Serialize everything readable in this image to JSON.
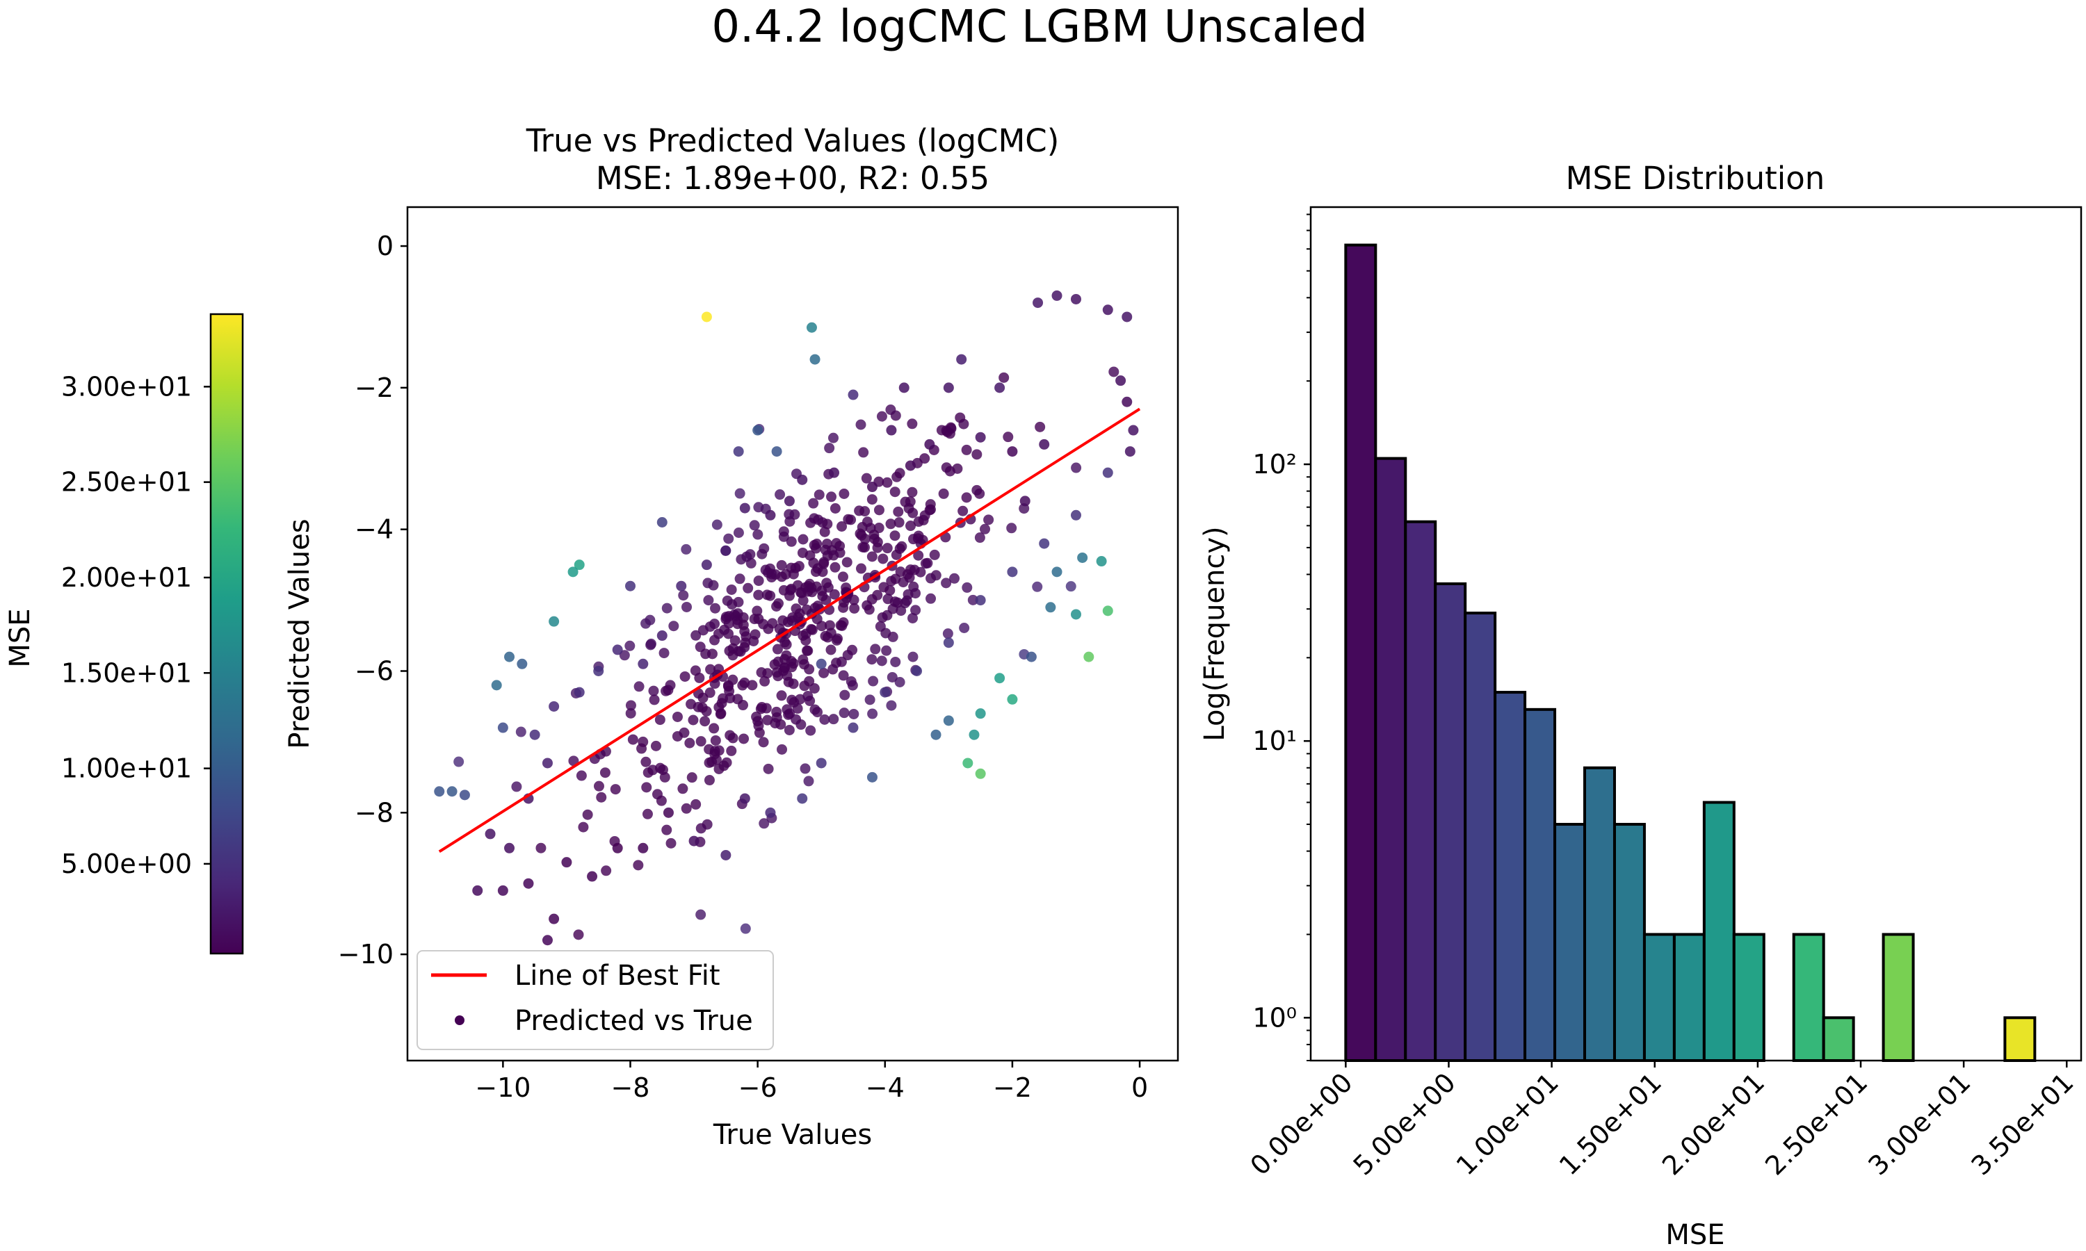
{
  "figure": {
    "suptitle": "0.4.2 logCMC LGBM Unscaled"
  },
  "chart_data": [
    {
      "type": "scatter",
      "title_line1": "True vs Predicted Values (logCMC)",
      "title_line2": "MSE: 1.89e+00, R2: 0.55",
      "xlabel": "True Values",
      "ylabel": "Predicted Values",
      "xlim": [
        -11.5,
        0.6
      ],
      "ylim": [
        -11.5,
        0.55
      ],
      "xticks": [
        -10,
        -8,
        -6,
        -4,
        -2,
        0
      ],
      "xtick_labels": [
        "−10",
        "−8",
        "−6",
        "−4",
        "−2",
        "0"
      ],
      "yticks": [
        0,
        -2,
        -4,
        -6,
        -8,
        -10
      ],
      "ytick_labels": [
        "0",
        "−2",
        "−4",
        "−6",
        "−8",
        "−10"
      ],
      "best_fit": {
        "name": "Line of Best Fit",
        "x": [
          -11.0,
          0.0
        ],
        "y": [
          -8.55,
          -2.3
        ],
        "color": "#ff0000"
      },
      "scatter_name": "Predicted vs True",
      "legend_loc": "lower left",
      "point_color_by": "MSE",
      "points": [
        {
          "x": -6.8,
          "y": -1.0,
          "mse": 33.8
        },
        {
          "x": -5.15,
          "y": -1.15,
          "mse": 15.0
        },
        {
          "x": -5.1,
          "y": -1.6,
          "mse": 12.0
        },
        {
          "x": -8.8,
          "y": -4.5,
          "mse": 19.5
        },
        {
          "x": -8.9,
          "y": -4.6,
          "mse": 18.5
        },
        {
          "x": -9.2,
          "y": -5.3,
          "mse": 16.0
        },
        {
          "x": -9.7,
          "y": -5.9,
          "mse": 10.0
        },
        {
          "x": -9.9,
          "y": -5.8,
          "mse": 11.0
        },
        {
          "x": -10.1,
          "y": -6.2,
          "mse": 12.0
        },
        {
          "x": -10.0,
          "y": -6.8,
          "mse": 8.0
        },
        {
          "x": -11.0,
          "y": -7.7,
          "mse": 9.0
        },
        {
          "x": -10.8,
          "y": -7.7,
          "mse": 9.5
        },
        {
          "x": -10.6,
          "y": -7.75,
          "mse": 8.0
        },
        {
          "x": -0.5,
          "y": -5.15,
          "mse": 24.0
        },
        {
          "x": -0.8,
          "y": -5.8,
          "mse": 25.5
        },
        {
          "x": -0.6,
          "y": -4.45,
          "mse": 17.5
        },
        {
          "x": -0.9,
          "y": -4.4,
          "mse": 13.0
        },
        {
          "x": -1.0,
          "y": -5.2,
          "mse": 17.0
        },
        {
          "x": -1.3,
          "y": -4.6,
          "mse": 12.0
        },
        {
          "x": -1.4,
          "y": -5.1,
          "mse": 12.5
        },
        {
          "x": -2.0,
          "y": -6.4,
          "mse": 20.5
        },
        {
          "x": -2.2,
          "y": -6.1,
          "mse": 19.0
        },
        {
          "x": -2.5,
          "y": -6.6,
          "mse": 18.0
        },
        {
          "x": -2.6,
          "y": -6.9,
          "mse": 17.5
        },
        {
          "x": -2.7,
          "y": -7.3,
          "mse": 23.0
        },
        {
          "x": -2.5,
          "y": -7.45,
          "mse": 25.0
        },
        {
          "x": -4.2,
          "y": -7.5,
          "mse": 9.0
        },
        {
          "x": -5.0,
          "y": -5.9,
          "mse": 7.0
        },
        {
          "x": -6.0,
          "y": -2.6,
          "mse": 9.5
        },
        {
          "x": -5.7,
          "y": -2.9,
          "mse": 9.0
        },
        {
          "x": -3.0,
          "y": -6.7,
          "mse": 11.0
        },
        {
          "x": -3.2,
          "y": -6.9,
          "mse": 10.5
        },
        {
          "x": -1.7,
          "y": -5.8,
          "mse": 9.0
        },
        {
          "x": -1.6,
          "y": -0.8,
          "mse": 2.5
        },
        {
          "x": -1.3,
          "y": -0.7,
          "mse": 2.2
        },
        {
          "x": -1.0,
          "y": -0.75,
          "mse": 2.0
        },
        {
          "x": -0.5,
          "y": -0.9,
          "mse": 2.0
        },
        {
          "x": -0.2,
          "y": -1.0,
          "mse": 2.2
        },
        {
          "x": -0.3,
          "y": -1.9,
          "mse": 1.5
        },
        {
          "x": -0.1,
          "y": -2.6,
          "mse": 2.0
        },
        {
          "x": -0.15,
          "y": -2.9,
          "mse": 2.0
        },
        {
          "x": -1.5,
          "y": -2.8,
          "mse": 1.5
        },
        {
          "x": -2.2,
          "y": -2.0,
          "mse": 2.5
        },
        {
          "x": -2.5,
          "y": -2.7,
          "mse": 1.8
        },
        {
          "x": -2.8,
          "y": -1.6,
          "mse": 3.0
        },
        {
          "x": -3.0,
          "y": -2.0,
          "mse": 2.2
        },
        {
          "x": -3.3,
          "y": -2.8,
          "mse": 1.2
        },
        {
          "x": -3.6,
          "y": -3.1,
          "mse": 1.0
        },
        {
          "x": -3.9,
          "y": -2.6,
          "mse": 1.6
        },
        {
          "x": -4.2,
          "y": -3.4,
          "mse": 1.0
        },
        {
          "x": -4.5,
          "y": -2.1,
          "mse": 4.5
        },
        {
          "x": -4.8,
          "y": -3.2,
          "mse": 1.5
        },
        {
          "x": -5.3,
          "y": -3.3,
          "mse": 2.0
        },
        {
          "x": -5.5,
          "y": -3.6,
          "mse": 1.5
        },
        {
          "x": -5.8,
          "y": -3.8,
          "mse": 1.8
        },
        {
          "x": -6.2,
          "y": -3.7,
          "mse": 2.5
        },
        {
          "x": -6.5,
          "y": -4.3,
          "mse": 3.0
        },
        {
          "x": -6.8,
          "y": -4.5,
          "mse": 3.0
        },
        {
          "x": -7.2,
          "y": -4.8,
          "mse": 3.5
        },
        {
          "x": -7.5,
          "y": -5.5,
          "mse": 3.0
        },
        {
          "x": -7.8,
          "y": -5.9,
          "mse": 3.5
        },
        {
          "x": -8.2,
          "y": -5.7,
          "mse": 4.0
        },
        {
          "x": -8.5,
          "y": -6.0,
          "mse": 5.0
        },
        {
          "x": -8.8,
          "y": -6.3,
          "mse": 4.5
        },
        {
          "x": -9.2,
          "y": -6.5,
          "mse": 4.0
        },
        {
          "x": -9.5,
          "y": -6.9,
          "mse": 4.5
        },
        {
          "x": -9.3,
          "y": -7.3,
          "mse": 3.0
        },
        {
          "x": -9.6,
          "y": -7.8,
          "mse": 2.0
        },
        {
          "x": -9.9,
          "y": -8.5,
          "mse": 1.5
        },
        {
          "x": -10.2,
          "y": -8.3,
          "mse": 2.0
        },
        {
          "x": -10.0,
          "y": -9.1,
          "mse": 1.0
        },
        {
          "x": -10.4,
          "y": -9.1,
          "mse": 1.2
        },
        {
          "x": -9.6,
          "y": -9.0,
          "mse": 0.8
        },
        {
          "x": -9.2,
          "y": -9.5,
          "mse": 0.5
        },
        {
          "x": -9.3,
          "y": -9.8,
          "mse": 0.8
        },
        {
          "x": -9.0,
          "y": -8.7,
          "mse": 0.5
        },
        {
          "x": -8.6,
          "y": -8.9,
          "mse": 0.5
        },
        {
          "x": -8.2,
          "y": -8.5,
          "mse": 0.3
        },
        {
          "x": -7.8,
          "y": -8.5,
          "mse": 0.5
        },
        {
          "x": -7.4,
          "y": -8.0,
          "mse": 0.5
        },
        {
          "x": -7.0,
          "y": -8.4,
          "mse": 1.5
        },
        {
          "x": -6.5,
          "y": -8.6,
          "mse": 3.0
        },
        {
          "x": -6.2,
          "y": -7.8,
          "mse": 2.5
        },
        {
          "x": -5.8,
          "y": -8.0,
          "mse": 4.0
        },
        {
          "x": -5.3,
          "y": -7.8,
          "mse": 5.5
        },
        {
          "x": -5.0,
          "y": -7.3,
          "mse": 5.0
        },
        {
          "x": -4.5,
          "y": -6.8,
          "mse": 5.0
        },
        {
          "x": -4.0,
          "y": -6.3,
          "mse": 5.0
        },
        {
          "x": -3.5,
          "y": -6.0,
          "mse": 5.5
        },
        {
          "x": -3.0,
          "y": -5.6,
          "mse": 5.5
        },
        {
          "x": -2.5,
          "y": -5.0,
          "mse": 5.0
        },
        {
          "x": -2.0,
          "y": -4.6,
          "mse": 5.5
        },
        {
          "x": -1.5,
          "y": -4.2,
          "mse": 5.5
        },
        {
          "x": -1.0,
          "y": -3.8,
          "mse": 5.0
        },
        {
          "x": -0.5,
          "y": -3.2,
          "mse": 5.0
        },
        {
          "x": -0.2,
          "y": -2.2,
          "mse": 1.0
        },
        {
          "x": -7.5,
          "y": -3.9,
          "mse": 6.5
        },
        {
          "x": -8.0,
          "y": -4.8,
          "mse": 5.0
        },
        {
          "x": -6.3,
          "y": -2.9,
          "mse": 5.5
        },
        {
          "x": -3.7,
          "y": -2.0,
          "mse": 2.0
        },
        {
          "x": -2.0,
          "y": -2.9,
          "mse": 0.8
        },
        {
          "x": -1.8,
          "y": -3.6,
          "mse": 1.2
        }
      ],
      "cluster_dense": {
        "color_mse": 0.5,
        "note": ""
      }
    },
    {
      "type": "bar",
      "title": "MSE Distribution",
      "xlabel": "MSE",
      "ylabel": "Log(Frequency)",
      "yscale": "log",
      "ylim": [
        0.7,
        850
      ],
      "xlim": [
        -1.7,
        35.7
      ],
      "bin_width": 1.45,
      "xticks": [
        0,
        5,
        10,
        15,
        20,
        25,
        30,
        35
      ],
      "xtick_labels": [
        "0.00e+00",
        "5.00e+00",
        "1.00e+01",
        "1.50e+01",
        "2.00e+01",
        "2.50e+01",
        "3.00e+01",
        "3.50e+01"
      ],
      "yticks": [
        1,
        10,
        100
      ],
      "ytick_labels": [
        "10⁰",
        "10¹",
        "10²"
      ],
      "bins": [
        {
          "x": 0.0,
          "count": 620
        },
        {
          "x": 1.45,
          "count": 105
        },
        {
          "x": 2.9,
          "count": 62
        },
        {
          "x": 4.35,
          "count": 37
        },
        {
          "x": 5.8,
          "count": 29
        },
        {
          "x": 7.25,
          "count": 15
        },
        {
          "x": 8.7,
          "count": 13
        },
        {
          "x": 10.15,
          "count": 5
        },
        {
          "x": 11.6,
          "count": 8
        },
        {
          "x": 13.05,
          "count": 5
        },
        {
          "x": 14.5,
          "count": 2
        },
        {
          "x": 15.95,
          "count": 2
        },
        {
          "x": 17.4,
          "count": 6
        },
        {
          "x": 18.85,
          "count": 2
        },
        {
          "x": 21.75,
          "count": 2
        },
        {
          "x": 23.2,
          "count": 1
        },
        {
          "x": 26.1,
          "count": 2
        },
        {
          "x": 32.0,
          "count": 1
        }
      ]
    }
  ],
  "colorbar": {
    "label": "MSE",
    "min": 0.3,
    "max": 33.8,
    "ticks": [
      5,
      10,
      15,
      20,
      25,
      30
    ],
    "tick_labels": [
      "5.00e+00",
      "1.00e+01",
      "1.50e+01",
      "2.00e+01",
      "2.50e+01",
      "3.00e+01"
    ]
  },
  "colors": {
    "viridis": [
      "#440154",
      "#482878",
      "#3e4989",
      "#31688e",
      "#26828e",
      "#1f9e89",
      "#35b779",
      "#6ece58",
      "#b5de2b",
      "#fde725"
    ],
    "best_fit": "#ff0000"
  }
}
